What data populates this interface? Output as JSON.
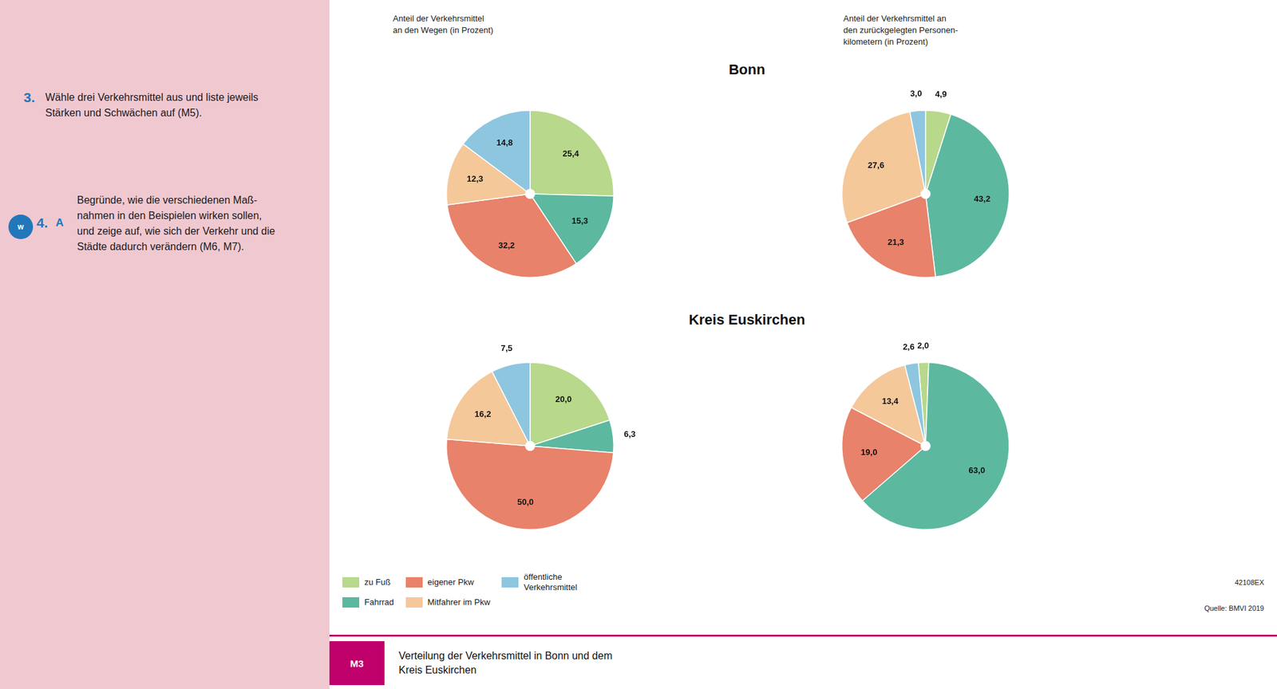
{
  "annotations": [
    "3.",
    "Wähle drei Verkehrsmittel aus und liste jeweils\nStärken und Schwächen auf (M5).",
    "w",
    "4.",
    "A",
    "Begründe, wie die verschiedenen Maß-\nnahmen in den Beispielen wirken sollen,\nund zeige auf, wie sich der Verkehr und die\nStädte dadurch verändern (M6, M7).",
    "Anteil der Verkehrsmittel\nan den Wegen (in Prozent)",
    "Anteil der Verkehrsmittel an\nden zurückgelegten Personen-\nkilometern (in Prozent)",
    "Bonn",
    "Kreis Euskirchen",
    "42108EX",
    "Quelle: BMVI 2019",
    "M3",
    "Verteilung der Verkehrsmittel in Bonn und dem\nKreis Euskirchen"
  ],
  "chart_data": [
    {
      "type": "pie",
      "categories": [
        "zu Fuß",
        "Fahrrad",
        "eigener Pkw",
        "Mitfahrer im Pkw",
        "öffentliche\nVerkehrsmittel"
      ],
      "values": [
        25.4,
        15.3,
        32.2,
        12.3,
        14.8
      ],
      "value_labels": [
        "25,4",
        "15,3",
        "32,2",
        "12,3",
        "14,8"
      ],
      "colors": [
        "#b8d88b",
        "#5db8a0",
        "#e8826a",
        "#f5c89a",
        "#8ec6e0"
      ],
      "data_labels": true
    },
    {
      "type": "pie",
      "categories": [
        "zu Fuß",
        "Fahrrad",
        "eigener Pkw",
        "Mitfahrer im Pkw",
        "öffentliche\nVerkehrsmittel"
      ],
      "values": [
        4.9,
        43.2,
        21.3,
        27.6,
        3.0
      ],
      "value_labels": [
        "4,9",
        "43,2",
        "21,3",
        "27,6",
        "3,0"
      ],
      "colors": [
        "#b8d88b",
        "#5db8a0",
        "#e8826a",
        "#f5c89a",
        "#8ec6e0"
      ],
      "data_labels": true
    },
    {
      "type": "pie",
      "categories": [
        "zu Fuß",
        "Fahrrad",
        "eigener Pkw",
        "Mitfahrer im Pkw",
        "öffentliche\nVerkehrsmittel"
      ],
      "values": [
        20.0,
        6.3,
        50.0,
        16.2,
        7.5
      ],
      "value_labels": [
        "20,0",
        "6,3",
        "50,0",
        "16,2",
        "7,5"
      ],
      "colors": [
        "#b8d88b",
        "#5db8a0",
        "#e8826a",
        "#f5c89a",
        "#8ec6e0"
      ],
      "data_labels": true
    },
    {
      "type": "pie",
      "categories": [
        "zu Fuß",
        "Fahrrad",
        "eigener Pkw",
        "Mitfahrer im Pkw",
        "öffentliche\nVerkehrsmittel"
      ],
      "values": [
        2.0,
        63.0,
        19.0,
        13.4,
        2.6
      ],
      "value_labels": [
        "2,0",
        "63,0",
        "19,0",
        "13,4",
        "2,6"
      ],
      "colors": [
        "#b8d88b",
        "#5db8a0",
        "#e8826a",
        "#f5c89a",
        "#8ec6e0"
      ],
      "data_labels": true,
      "legend": "bottom"
    }
  ]
}
